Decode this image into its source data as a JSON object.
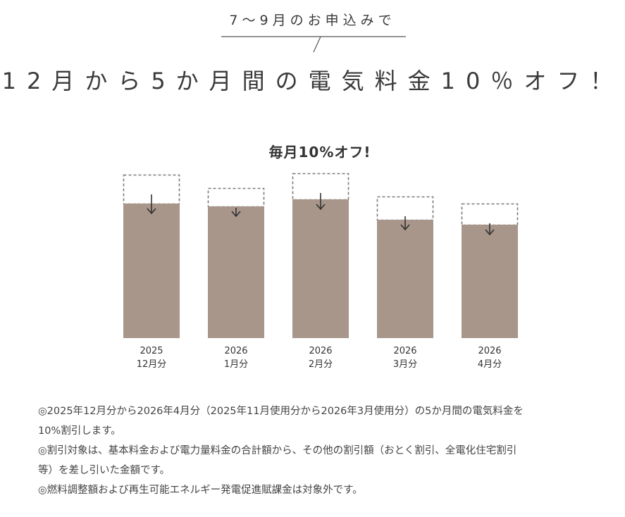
{
  "header": {
    "callout": "7〜9月のお申込みで",
    "headline": "12月から5か月間の電気料金10％オフ！"
  },
  "chart_data": {
    "type": "bar",
    "title": "毎月10%オフ!",
    "categories": [
      {
        "year": "2025",
        "month": "12月分"
      },
      {
        "year": "2026",
        "month": "1月分"
      },
      {
        "year": "2026",
        "month": "2月分"
      },
      {
        "year": "2026",
        "month": "3月分"
      },
      {
        "year": "2026",
        "month": "4月分"
      }
    ],
    "series": [
      {
        "values": [
          232,
          213,
          234,
          201,
          191
        ]
      },
      {
        "values": [
          191,
          187,
          197,
          168,
          161
        ]
      }
    ],
    "colors": {
      "bar": "#a8968b",
      "outline": "#7a7a7a",
      "arrow": "#333333"
    }
  },
  "notes": [
    "◎2025年12月分から2026年4月分（2025年11月使用分から2026年3月使用分）の5か月間の電気料金を",
    "10%割引します。",
    "◎割引対象は、基本料金および電力量料金の合計額から、その他の割引額（おとく割引、全電化住宅割引",
    "等）を差し引いた金額です。",
    "◎燃料調整額および再生可能エネルギー発電促進賦課金は対象外です。"
  ]
}
